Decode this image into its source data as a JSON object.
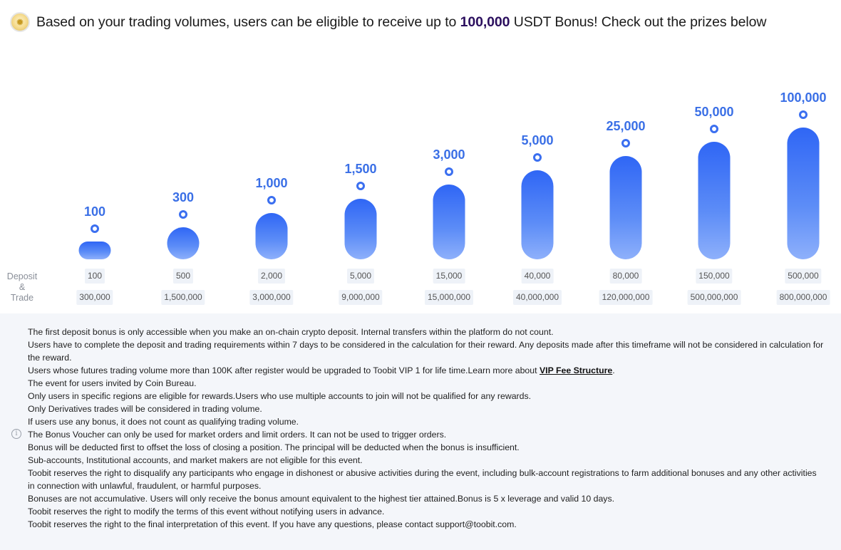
{
  "header": {
    "text_before": "Based on your trading volumes, users can be eligible to receive up to ",
    "highlight": "100,000",
    "text_after": " USDT Bonus! Check out the prizes below"
  },
  "labels": {
    "row_label_line1": "Deposit",
    "row_label_line2": "&",
    "row_label_line3": "Trade"
  },
  "tiers": [
    {
      "prize": "100",
      "deposit": "100",
      "trade": "300,000"
    },
    {
      "prize": "300",
      "deposit": "500",
      "trade": "1,500,000"
    },
    {
      "prize": "1,000",
      "deposit": "2,000",
      "trade": "3,000,000"
    },
    {
      "prize": "1,500",
      "deposit": "5,000",
      "trade": "9,000,000"
    },
    {
      "prize": "3,000",
      "deposit": "15,000",
      "trade": "15,000,000"
    },
    {
      "prize": "5,000",
      "deposit": "40,000",
      "trade": "40,000,000"
    },
    {
      "prize": "25,000",
      "deposit": "80,000",
      "trade": "120,000,000"
    },
    {
      "prize": "50,000",
      "deposit": "150,000",
      "trade": "500,000,000"
    },
    {
      "prize": "100,000",
      "deposit": "500,000",
      "trade": "800,000,000"
    }
  ],
  "rules": {
    "info_icon": "info-icon",
    "r1": "The first deposit bonus is only accessible when you make an on-chain crypto deposit. Internal transfers within the platform do not count.",
    "r2": "Users have to complete the deposit and trading requirements within 7 days to be considered in the calculation for their reward. Any deposits made after this timeframe will not be considered in calculation for the reward.",
    "r3_before": "Users whose futures trading volume more than 100K after register would be upgraded to Toobit VIP 1 for life time.Learn more about ",
    "r3_link": "VIP Fee Structure",
    "r3_after": ".",
    "r4": "The event for users invited by Coin Bureau.",
    "r5": "Only users in specific regions are eligible for rewards.Users who use multiple accounts to join will not be qualified for any rewards.",
    "r6": "Only Derivatives trades will be considered in trading volume.",
    "r7": "If users use any bonus, it does not count as qualifying trading volume.",
    "r8": "The Bonus Voucher can only be used for market orders and limit orders. It can not be used to trigger orders.",
    "r9": "Bonus will be deducted first to offset the loss of closing a position. The principal will be deducted when the bonus is insufficient.",
    "r10": "Sub-accounts, Institutional accounts, and market makers are not eligible for this event.",
    "r11": "Toobit reserves the right to disqualify any participants who engage in dishonest or abusive activities during the event, including bulk-account registrations to farm additional bonuses and any other activities in connection with unlawful, fraudulent, or harmful purposes.",
    "r12": "Bonuses are not accumulative. Users will only receive the bonus amount equivalent to the highest tier attained.Bonus is 5 x leverage and valid 10 days.",
    "r13": "Toobit reserves the right to modify the terms of this event without notifying users in advance.",
    "r14": "Toobit reserves the right to the final interpretation of this event. If you have any questions, please contact support@toobit.com."
  }
}
